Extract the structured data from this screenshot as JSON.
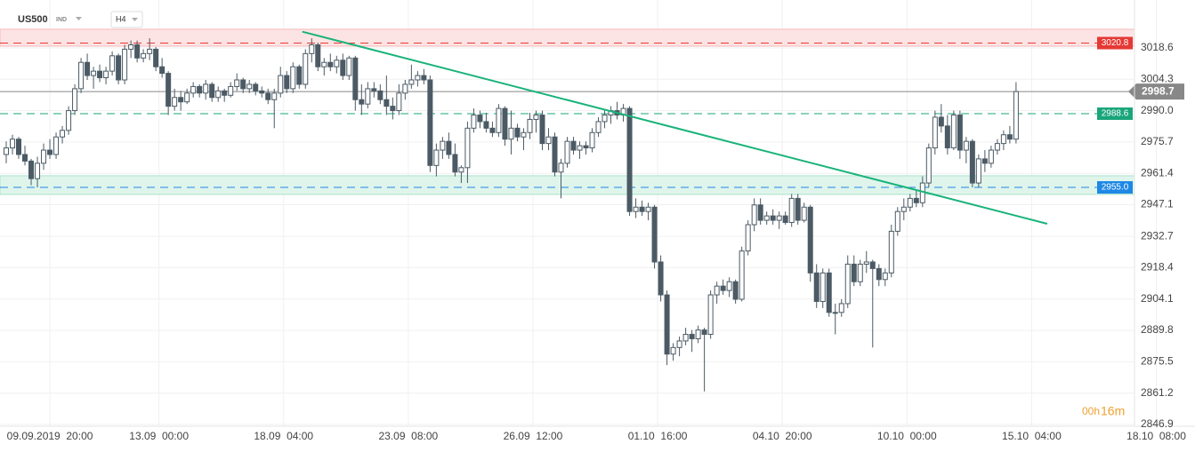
{
  "chart_data": {
    "type": "candlestick",
    "symbol": "US500",
    "market": "IND",
    "timeframe": "H4",
    "countdown": {
      "hours": "00h",
      "minutes": "16m"
    },
    "ylim": [
      2846.1,
      3037.2
    ],
    "yticks": [
      3018.6,
      3004.3,
      {
        "value": 2990,
        "label": "2990.0"
      },
      2975.7,
      2961.4,
      2947.1,
      2932.7,
      2918.4,
      2904.1,
      2889.8,
      2875.5,
      2861.2,
      2846.9
    ],
    "xlim": [
      -1,
      181
    ],
    "xticks": [
      {
        "value": 7,
        "label": "09.09.2019  20:00"
      },
      {
        "value": 24.5,
        "label": "13.09  00:00"
      },
      {
        "value": 44.5,
        "label": "18.09  04:00"
      },
      {
        "value": 64.5,
        "label": "23.09  08:00"
      },
      {
        "value": 84.5,
        "label": "26.09  12:00"
      },
      {
        "value": 104.5,
        "label": "01.10  16:00"
      },
      {
        "value": 124.5,
        "label": "04.10  20:00"
      },
      {
        "value": 144.5,
        "label": "10.10  00:00"
      },
      {
        "value": 164.5,
        "label": "15.10  04:00"
      },
      {
        "value": 184.5,
        "label": "18.10  08:00"
      }
    ],
    "grid": true,
    "up_color": "#ffffff",
    "down_color": "#4b5a64",
    "outline_color": "#4b5a64",
    "zones": [
      {
        "range": [
          3019.4,
          3027.1
        ],
        "color": "#fde4e4",
        "border": "#f6b9b9"
      },
      {
        "range": [
          2951.8,
          2960.3
        ],
        "color": "#dff5ec",
        "border": "#a9e2ca"
      }
    ],
    "levels": [
      {
        "value": 3020.8,
        "label": "3020.8",
        "color": "#e53935"
      },
      {
        "value": 2988.6,
        "label": "2988.6",
        "color": "#1aa57a"
      },
      {
        "value": 2955,
        "label": "2955.0",
        "color": "#1e88e5"
      }
    ],
    "current_price": {
      "value": 2998.7,
      "label": "2998.7",
      "color": "#888888"
    },
    "trendline": {
      "x": [
        47.5,
        167
      ],
      "y": [
        3026,
        2938.4
      ],
      "color": "#19b37a"
    },
    "candles": [
      [
        2970,
        2976,
        2966,
        2973
      ],
      [
        2973,
        2979,
        2970,
        2977
      ],
      [
        2977,
        2978,
        2968,
        2970
      ],
      [
        2970,
        2974,
        2965,
        2967
      ],
      [
        2967,
        2968,
        2956,
        2959
      ],
      [
        2959,
        2969,
        2955,
        2966
      ],
      [
        2966,
        2975,
        2963,
        2972
      ],
      [
        2972,
        2977,
        2968,
        2970
      ],
      [
        2970,
        2980,
        2968,
        2978
      ],
      [
        2978,
        2983,
        2975,
        2981
      ],
      [
        2981,
        2992,
        2979,
        2990
      ],
      [
        2990,
        3002,
        2988,
        3000
      ],
      [
        3000,
        3014,
        2998,
        3012
      ],
      [
        3012,
        3016,
        3004,
        3006
      ],
      [
        3006,
        3010,
        3000,
        3008
      ],
      [
        3008,
        3011,
        3003,
        3005
      ],
      [
        3005,
        3010,
        3002,
        3008
      ],
      [
        3008,
        3017,
        3006,
        3015
      ],
      [
        3015,
        3016,
        3002,
        3004
      ],
      [
        3004,
        3020,
        3002,
        3018
      ],
      [
        3018,
        3022,
        3014,
        3020
      ],
      [
        3020,
        3022,
        3012,
        3014
      ],
      [
        3014,
        3018,
        3012,
        3016
      ],
      [
        3016,
        3023,
        3013,
        3018
      ],
      [
        3018,
        3019,
        3008,
        3010
      ],
      [
        3010,
        3014,
        3005,
        3007
      ],
      [
        3007,
        3008,
        2988,
        2992
      ],
      [
        2992,
        3000,
        2990,
        2996
      ],
      [
        2996,
        2999,
        2990,
        2994
      ],
      [
        2994,
        3000,
        2993,
        2998
      ],
      [
        2998,
        3003,
        2996,
        3001
      ],
      [
        3001,
        3002,
        2996,
        2998
      ],
      [
        2998,
        3004,
        2995,
        3002
      ],
      [
        3002,
        3003,
        2994,
        2996
      ],
      [
        2996,
        3001,
        2994,
        2999
      ],
      [
        2999,
        3000,
        2994,
        2997
      ],
      [
        2997,
        3003,
        2996,
        3001
      ],
      [
        3001,
        3007,
        2999,
        3004
      ],
      [
        3004,
        3005,
        2998,
        3000
      ],
      [
        3000,
        3004,
        2998,
        3002
      ],
      [
        3002,
        3003,
        2997,
        2999
      ],
      [
        2999,
        3001,
        2996,
        2998
      ],
      [
        2998,
        3000,
        2993,
        2995
      ],
      [
        2995,
        3000,
        2982,
        2998
      ],
      [
        2998,
        3010,
        2996,
        3006
      ],
      [
        3006,
        3008,
        2998,
        3000
      ],
      [
        3000,
        3012,
        2998,
        3010
      ],
      [
        3010,
        3011,
        3000,
        3002
      ],
      [
        3002,
        3018,
        3000,
        3016
      ],
      [
        3016,
        3023,
        3012,
        3020
      ],
      [
        3020,
        3021,
        3008,
        3010
      ],
      [
        3010,
        3014,
        3006,
        3012
      ],
      [
        3012,
        3016,
        3008,
        3010
      ],
      [
        3010,
        3015,
        3007,
        3013
      ],
      [
        3013,
        3016,
        3004,
        3006
      ],
      [
        3006,
        3015,
        3004,
        3014
      ],
      [
        3014,
        3015,
        2990,
        2995
      ],
      [
        2995,
        3002,
        2988,
        2993
      ],
      [
        2993,
        3003,
        2991,
        3000
      ],
      [
        3000,
        3003,
        2996,
        2999
      ],
      [
        2999,
        3002,
        2993,
        2995
      ],
      [
        2995,
        3006,
        2988,
        2992
      ],
      [
        2992,
        2996,
        2986,
        2990
      ],
      [
        2990,
        3002,
        2988,
        2998
      ],
      [
        2998,
        3004,
        2995,
        3002
      ],
      [
        3002,
        3011,
        3000,
        3004
      ],
      [
        3004,
        3008,
        3001,
        3006
      ],
      [
        3006,
        3009,
        3002,
        3004
      ],
      [
        3004,
        3006,
        2962,
        2965
      ],
      [
        2965,
        2975,
        2960,
        2972
      ],
      [
        2972,
        2978,
        2968,
        2976
      ],
      [
        2976,
        2980,
        2968,
        2970
      ],
      [
        2970,
        2975,
        2960,
        2962
      ],
      [
        2962,
        2965,
        2957,
        2964
      ],
      [
        2964,
        2985,
        2957,
        2982
      ],
      [
        2982,
        2991,
        2980,
        2988
      ],
      [
        2988,
        2990,
        2982,
        2985
      ],
      [
        2985,
        2989,
        2980,
        2982
      ],
      [
        2982,
        2985,
        2978,
        2980
      ],
      [
        2980,
        2993,
        2978,
        2991
      ],
      [
        2991,
        2992,
        2974,
        2977
      ],
      [
        2977,
        2990,
        2970,
        2982
      ],
      [
        2982,
        2984,
        2976,
        2978
      ],
      [
        2978,
        2982,
        2972,
        2980
      ],
      [
        2980,
        2989,
        2977,
        2986
      ],
      [
        2986,
        2990,
        2980,
        2988
      ],
      [
        2988,
        2990,
        2972,
        2975
      ],
      [
        2975,
        2982,
        2972,
        2978
      ],
      [
        2978,
        2980,
        2960,
        2962
      ],
      [
        2962,
        2968,
        2950,
        2966
      ],
      [
        2966,
        2978,
        2964,
        2976
      ],
      [
        2976,
        2978,
        2970,
        2972
      ],
      [
        2972,
        2976,
        2968,
        2974
      ],
      [
        2974,
        2976,
        2970,
        2973
      ],
      [
        2973,
        2982,
        2971,
        2980
      ],
      [
        2980,
        2987,
        2978,
        2985
      ],
      [
        2985,
        2990,
        2982,
        2988
      ],
      [
        2988,
        2992,
        2984,
        2990
      ],
      [
        2990,
        2994,
        2986,
        2988
      ],
      [
        2988,
        2993,
        2985,
        2991
      ],
      [
        2991,
        2992,
        2942,
        2944
      ],
      [
        2944,
        2950,
        2941,
        2946
      ],
      [
        2946,
        2949,
        2942,
        2944
      ],
      [
        2944,
        2948,
        2940,
        2946
      ],
      [
        2946,
        2947,
        2918,
        2921
      ],
      [
        2921,
        2924,
        2903,
        2906
      ],
      [
        2906,
        2908,
        2874,
        2879
      ],
      [
        2879,
        2884,
        2876,
        2882
      ],
      [
        2882,
        2887,
        2878,
        2885
      ],
      [
        2885,
        2891,
        2883,
        2888
      ],
      [
        2888,
        2890,
        2880,
        2886
      ],
      [
        2886,
        2892,
        2884,
        2890
      ],
      [
        2890,
        2891,
        2862,
        2888
      ],
      [
        2888,
        2908,
        2886,
        2906
      ],
      [
        2906,
        2912,
        2902,
        2910
      ],
      [
        2910,
        2913,
        2906,
        2908
      ],
      [
        2908,
        2914,
        2905,
        2912
      ],
      [
        2912,
        2913,
        2902,
        2904
      ],
      [
        2904,
        2928,
        2903,
        2926
      ],
      [
        2926,
        2940,
        2924,
        2938
      ],
      [
        2938,
        2950,
        2935,
        2947
      ],
      [
        2947,
        2950,
        2938,
        2940
      ],
      [
        2940,
        2944,
        2938,
        2942
      ],
      [
        2942,
        2945,
        2938,
        2940
      ],
      [
        2940,
        2944,
        2936,
        2942
      ],
      [
        2942,
        2944,
        2938,
        2939
      ],
      [
        2939,
        2952,
        2937,
        2950
      ],
      [
        2950,
        2952,
        2938,
        2940
      ],
      [
        2940,
        2948,
        2939,
        2946
      ],
      [
        2946,
        2947,
        2912,
        2916
      ],
      [
        2916,
        2920,
        2900,
        2903
      ],
      [
        2903,
        2918,
        2900,
        2916
      ],
      [
        2916,
        2918,
        2896,
        2898
      ],
      [
        2898,
        2902,
        2888,
        2898
      ],
      [
        2898,
        2904,
        2896,
        2902
      ],
      [
        2902,
        2924,
        2900,
        2920
      ],
      [
        2920,
        2924,
        2910,
        2912
      ],
      [
        2912,
        2922,
        2910,
        2920
      ],
      [
        2920,
        2926,
        2916,
        2921
      ],
      [
        2921,
        2922,
        2882,
        2918
      ],
      [
        2918,
        2920,
        2910,
        2913
      ],
      [
        2913,
        2918,
        2910,
        2916
      ],
      [
        2916,
        2938,
        2914,
        2935
      ],
      [
        2935,
        2946,
        2933,
        2944
      ],
      [
        2944,
        2950,
        2940,
        2946
      ],
      [
        2946,
        2952,
        2944,
        2950
      ],
      [
        2950,
        2954,
        2946,
        2948
      ],
      [
        2948,
        2960,
        2946,
        2957
      ],
      [
        2957,
        2975,
        2955,
        2973
      ],
      [
        2973,
        2990,
        2970,
        2987
      ],
      [
        2987,
        2993,
        2980,
        2983
      ],
      [
        2983,
        2988,
        2970,
        2973
      ],
      [
        2973,
        2990,
        2972,
        2988
      ],
      [
        2988,
        2990,
        2968,
        2972
      ],
      [
        2972,
        2978,
        2966,
        2976
      ],
      [
        2976,
        2977,
        2955,
        2957
      ],
      [
        2957,
        2970,
        2955,
        2968
      ],
      [
        2968,
        2972,
        2962,
        2966
      ],
      [
        2966,
        2974,
        2964,
        2972
      ],
      [
        2972,
        2977,
        2970,
        2975
      ],
      [
        2975,
        2981,
        2972,
        2979
      ],
      [
        2979,
        2983,
        2975,
        2977
      ],
      [
        2977,
        3003,
        2975,
        2998.7
      ]
    ]
  }
}
